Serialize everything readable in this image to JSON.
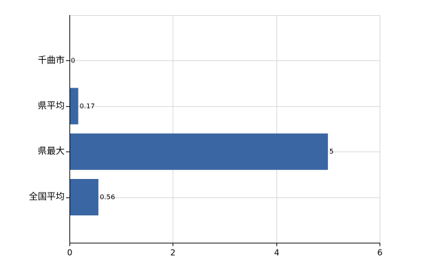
{
  "chart_data": {
    "type": "bar",
    "orientation": "horizontal",
    "categories": [
      "千曲市",
      "県平均",
      "県最大",
      "全国平均"
    ],
    "values": [
      0,
      0.17,
      5,
      0.56
    ],
    "color": "#3a66a3",
    "xlim": [
      0,
      6
    ],
    "xticks": [
      0,
      2,
      4,
      6
    ],
    "grid": true
  }
}
